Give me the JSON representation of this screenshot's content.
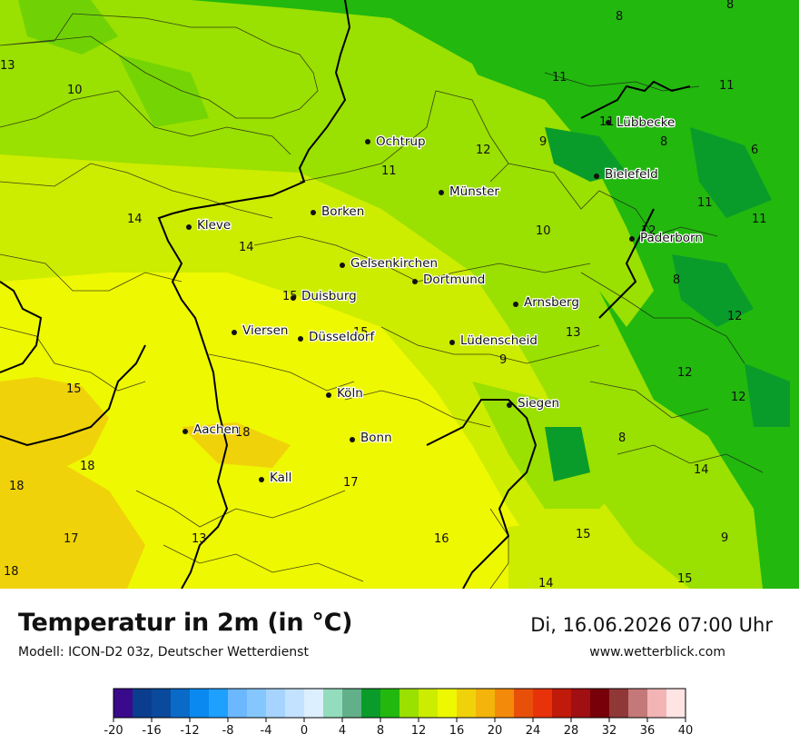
{
  "header": {
    "title": "Temperatur in 2m (in °C)",
    "subtitle": "Modell: ICON-D2 03z, Deutscher Wetterdienst",
    "datetime": "Di, 16.06.2026 07:00 Uhr",
    "website": "www.wetterblick.com"
  },
  "cities": [
    {
      "name": "Ochtrup"
    },
    {
      "name": "Lübbecke"
    },
    {
      "name": "Bielefeld"
    },
    {
      "name": "Münster"
    },
    {
      "name": "Kleve"
    },
    {
      "name": "Borken"
    },
    {
      "name": "Paderborn"
    },
    {
      "name": "Gelsenkirchen"
    },
    {
      "name": "Dortmund"
    },
    {
      "name": "Duisburg"
    },
    {
      "name": "Arnsberg"
    },
    {
      "name": "Viersen"
    },
    {
      "name": "Düsseldorf"
    },
    {
      "name": "Lüdenscheid"
    },
    {
      "name": "Köln"
    },
    {
      "name": "Siegen"
    },
    {
      "name": "Aachen"
    },
    {
      "name": "Bonn"
    },
    {
      "name": "Kall"
    }
  ],
  "value_labels": [
    "8",
    "8",
    "13",
    "10",
    "11",
    "11",
    "11",
    "12",
    "9",
    "8",
    "6",
    "11",
    "14",
    "11",
    "11",
    "10",
    "12",
    "14",
    "8",
    "15",
    "15",
    "12",
    "13",
    "9",
    "12",
    "12",
    "15",
    "18",
    "8",
    "18",
    "14",
    "18",
    "17",
    "16",
    "15",
    "9",
    "17",
    "13",
    "18",
    "14",
    "15"
  ],
  "legend": {
    "tick_labels": [
      "-20",
      "-16",
      "-12",
      "-8",
      "-4",
      "0",
      "4",
      "8",
      "12",
      "16",
      "20",
      "24",
      "28",
      "32",
      "36",
      "40"
    ],
    "colors": [
      "#3a0a8c",
      "#0b3d8f",
      "#0a4a9c",
      "#0a6ac8",
      "#0a8af0",
      "#1ea0ff",
      "#6cb8ff",
      "#86c6ff",
      "#a6d4ff",
      "#c3e2ff",
      "#dcefff",
      "#93dcbd",
      "#62b08a",
      "#0a9c2a",
      "#22b80e",
      "#9ae000",
      "#ccec00",
      "#eef800",
      "#f0d20a",
      "#f4b40a",
      "#f48a0a",
      "#e8500a",
      "#e8320a",
      "#c01a0a",
      "#a00f12",
      "#780008",
      "#903838",
      "#c47878",
      "#f2b4b4",
      "#ffe4e4"
    ]
  }
}
